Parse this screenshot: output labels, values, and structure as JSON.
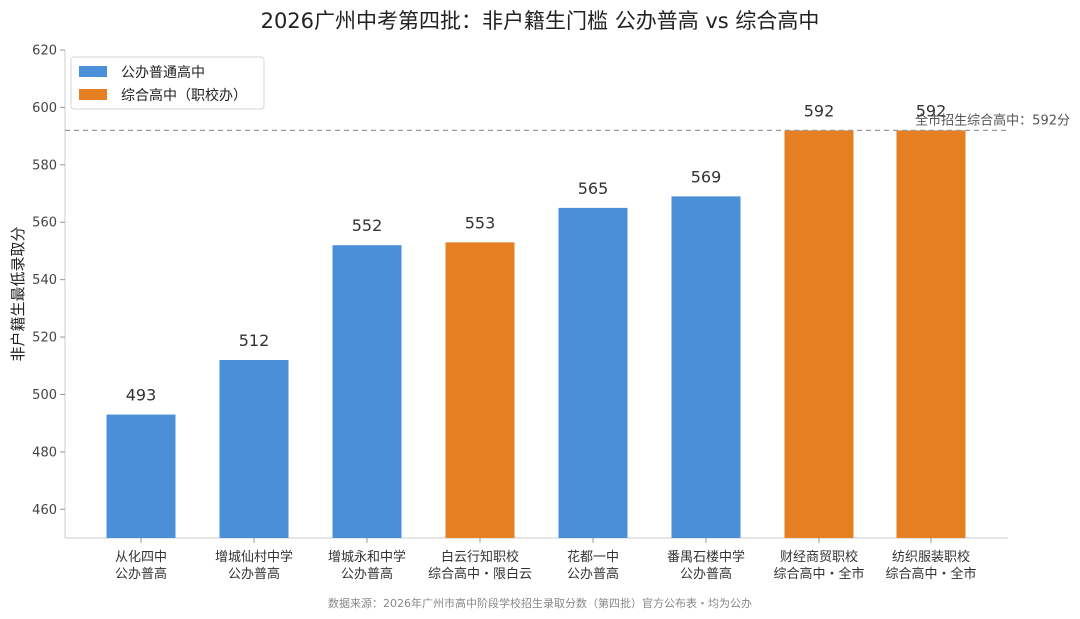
{
  "chart_data": {
    "type": "bar",
    "title": "2026广州中考第四批：非户籍生门槛 公办普高 vs 综合高中",
    "ylabel": "非户籍生最低录取分",
    "xlabel": "",
    "ylim": [
      450,
      620
    ],
    "yticks": [
      460,
      480,
      500,
      520,
      540,
      560,
      580,
      600,
      620
    ],
    "grid": false,
    "legend_position": "top-left",
    "categories": [
      [
        "从化四中",
        "公办普高"
      ],
      [
        "增城仙村中学",
        "公办普高"
      ],
      [
        "增城永和中学",
        "公办普高"
      ],
      [
        "白云行知职校",
        "综合高中・限白云"
      ],
      [
        "花都一中",
        "公办普高"
      ],
      [
        "番禺石楼中学",
        "公办普高"
      ],
      [
        "财经商贸职校",
        "综合高中・全市"
      ],
      [
        "纺织服装职校",
        "综合高中・全市"
      ]
    ],
    "values": [
      493,
      512,
      552,
      553,
      565,
      569,
      592,
      592
    ],
    "bar_group": [
      "公办普通高中",
      "公办普通高中",
      "公办普通高中",
      "综合高中（职校办）",
      "公办普通高中",
      "公办普通高中",
      "综合高中（职校办）",
      "综合高中（职校办）"
    ],
    "legend": [
      {
        "name": "公办普通高中",
        "color": "#4A90D9"
      },
      {
        "name": "综合高中（职校办）",
        "color": "#E67E22"
      }
    ],
    "reference_line": {
      "value": 592,
      "label": "全市招生综合高中：592分"
    },
    "source": "数据来源：2026年广州市高中阶段学校招生录取分数（第四批）官方公布表・均为公办"
  }
}
